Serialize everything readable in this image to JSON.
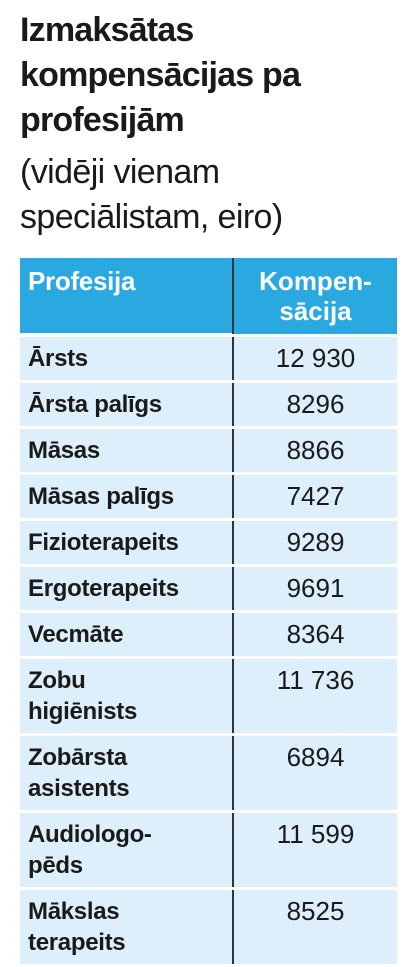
{
  "title": "Izmaksātas kompensācijas pa profesijām",
  "subtitle": "(vidēji vienam speciālistam, eiro)",
  "table": {
    "header": [
      "Profesija",
      "Kompen-\nsācija"
    ],
    "rows": [
      [
        "Ārsts",
        "12 930"
      ],
      [
        "Ārsta palīgs",
        "8296"
      ],
      [
        "Māsas",
        "8866"
      ],
      [
        "Māsas palīgs",
        "7427"
      ],
      [
        "Fizioterapeits",
        "9289"
      ],
      [
        "Ergoterapeits",
        "9691"
      ],
      [
        "Vecmāte",
        "8364"
      ],
      [
        "Zobu\nhigiēnists",
        "11 736"
      ],
      [
        "Zobārsta\nasistents",
        "6894"
      ],
      [
        "Audiologo-\npēds",
        "11 599"
      ],
      [
        "Mākslas\nterapeits",
        "8525"
      ]
    ]
  }
}
